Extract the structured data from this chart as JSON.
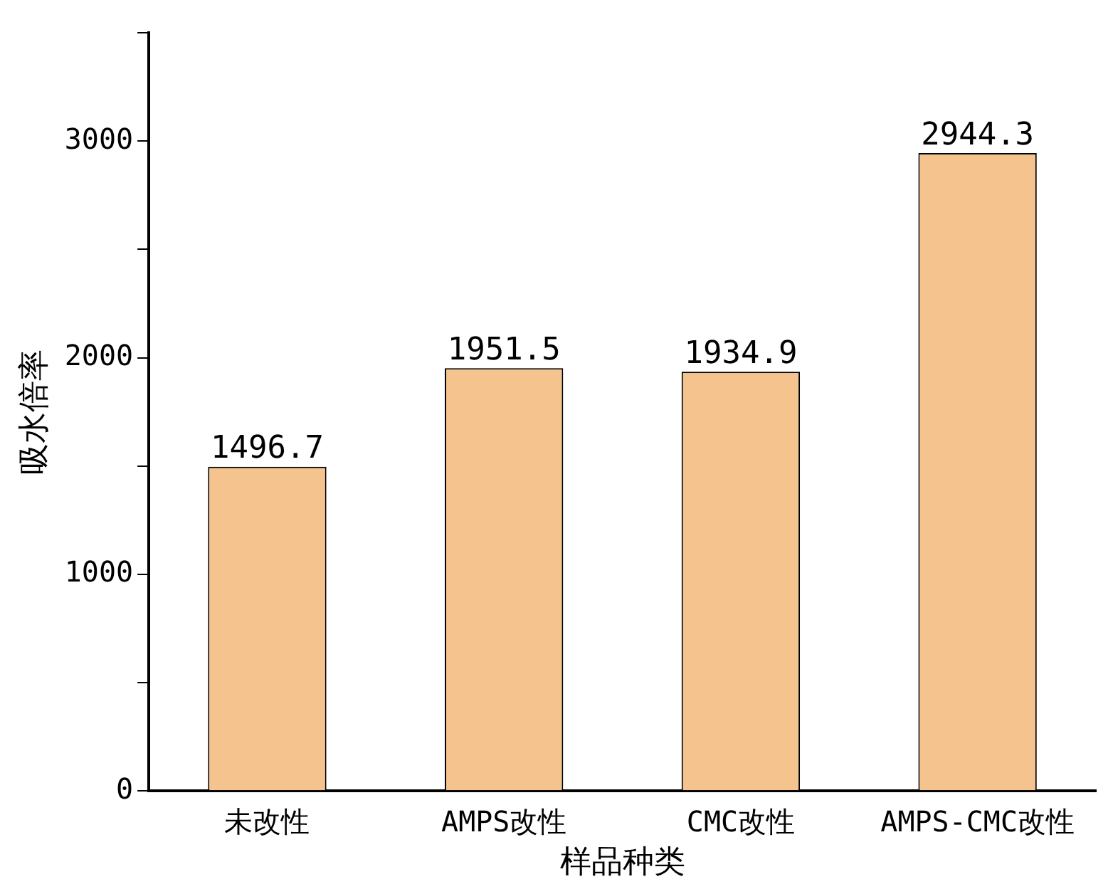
{
  "chart_data": {
    "type": "bar",
    "xlabel": "样品种类",
    "ylabel": "吸水倍率",
    "categories": [
      "未改性",
      "AMPS改性",
      "CMC改性",
      "AMPS-CMC改性"
    ],
    "values": [
      1496.7,
      1951.5,
      1934.9,
      2944.3
    ],
    "color": "#f5c48e",
    "ylim": [
      0,
      3500
    ],
    "yticks": [
      0,
      {
        "value": 500,
        "label": null
      },
      1000,
      {
        "value": 1500,
        "label": null
      },
      2000,
      {
        "value": 2500,
        "label": null
      },
      3000,
      {
        "value": 3500,
        "label": null
      }
    ],
    "grid": false,
    "legend": false,
    "data_labels": true
  }
}
